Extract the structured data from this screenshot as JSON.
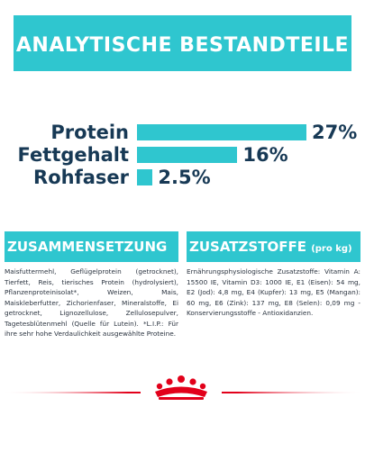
{
  "header": {
    "title": "ANALYTISCHE BESTANDTEILE"
  },
  "chart_data": {
    "type": "bar",
    "categories": [
      "Protein",
      "Fettgehalt",
      "Rohfaser"
    ],
    "values": [
      27,
      16,
      2.5
    ],
    "value_labels": [
      "27%",
      "16%",
      "2.5%"
    ]
  },
  "composition": {
    "title": "ZUSAMMENSETZUNG",
    "text": "Maisfuttermehl, Geflügelprotein (getrocknet), Tierfett, Reis, tierisches Protein (hydrolysiert), Pflanzenproteinisolat*, Weizen, Mais, Maiskleberfutter, Zichorienfaser, Mineralstoffe, Ei getrocknet, Lignozellulose, Zellulosepulver, Tagetesblütenmehl (Quelle für Lutein). *L.I.P.: Für ihre sehr hohe Verdaulichkeit ausgewählte Proteine."
  },
  "additives": {
    "title": "ZUSATZSTOFFE",
    "title_suffix": "(pro kg)",
    "text": "Ernährungsphysiologische Zusatzstoffe: Vitamin A: 15500 IE, Vitamin D3: 1000 IE, E1 (Eisen): 54 mg, E2 (Jod): 4,8 mg, E4 (Kupfer): 13 mg, E5 (Mangan): 60 mg, E6 (Zink): 137 mg, E8 (Selen): 0,09 mg - Konservierungsstoffe - Antioxidanzien."
  },
  "colors": {
    "accent": "#2fc6cf",
    "brand_red": "#e2001a",
    "text_dark": "#173955"
  },
  "logo": {
    "icon": "royal-canin-crown-icon"
  }
}
